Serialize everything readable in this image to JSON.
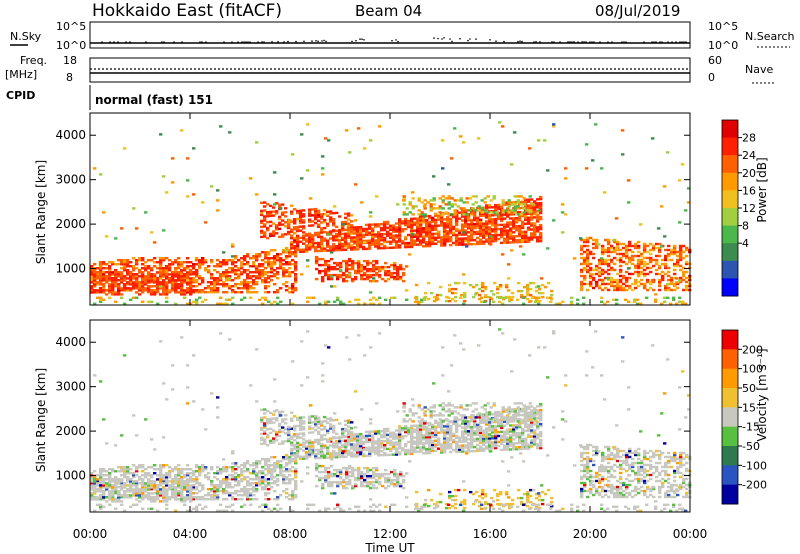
{
  "header": {
    "title": "Hokkaido East (fitACF)",
    "beam": "Beam 04",
    "date": "08/Jul/2019"
  },
  "param_panels": {
    "nsky_label": "N.Sky",
    "nsearch_label": "N.Search",
    "noise_ticks_left": [
      "10^5",
      "10^0"
    ],
    "noise_ticks_right": [
      "10^5",
      "10^0"
    ],
    "freq_label_1": "Freq.",
    "freq_label_2": "[MHz]",
    "freq_ticks": [
      "18",
      "8"
    ],
    "nave_label": "Nave",
    "nave_ticks": [
      "60",
      "0"
    ],
    "cpid_label": "CPID",
    "cpid_text": "normal (fast) 151"
  },
  "colors": {
    "power": [
      "#0000ff",
      "#2b55b0",
      "#3c8c50",
      "#4cb84c",
      "#a0d040",
      "#f0c020",
      "#ff9a00",
      "#ff6000",
      "#ff2000",
      "#e00000"
    ],
    "velocity": [
      "#0000a0",
      "#2a55c0",
      "#2e7a4e",
      "#58c040",
      "#c8c8c0",
      "#f0c030",
      "#ff9a00",
      "#ff6000",
      "#ee0000"
    ],
    "ground_scatter": "#c8c8c0"
  },
  "chart_data": [
    {
      "type": "heatmap",
      "name": "power",
      "ylabel": "Slant Range [km]",
      "y_ticks": [
        "1000",
        "2000",
        "3000",
        "4000"
      ],
      "x_ticks": [
        "00:00",
        "04:00",
        "08:00",
        "12:00",
        "16:00",
        "20:00",
        "00:00"
      ],
      "colorbar_label": "Power [dB]",
      "colorbar_ticks": [
        "28",
        "24",
        "20",
        "16",
        "12",
        "8",
        "4"
      ],
      "ylim": [
        180,
        4500
      ],
      "xlim_hours": [
        0,
        24
      ]
    },
    {
      "type": "heatmap",
      "name": "velocity",
      "ylabel": "Slant Range [km]",
      "y_ticks": [
        "1000",
        "2000",
        "3000",
        "4000"
      ],
      "x_ticks": [
        "00:00",
        "04:00",
        "08:00",
        "12:00",
        "16:00",
        "20:00",
        "00:00"
      ],
      "xlabel": "Time UT",
      "colorbar_label": "Velocity [m s⁻¹]",
      "colorbar_ticks": [
        "200",
        "100",
        "50",
        "15",
        "-15",
        "-50",
        "-100",
        "-200"
      ],
      "ylim": [
        180,
        4500
      ],
      "xlim_hours": [
        0,
        24
      ]
    }
  ]
}
